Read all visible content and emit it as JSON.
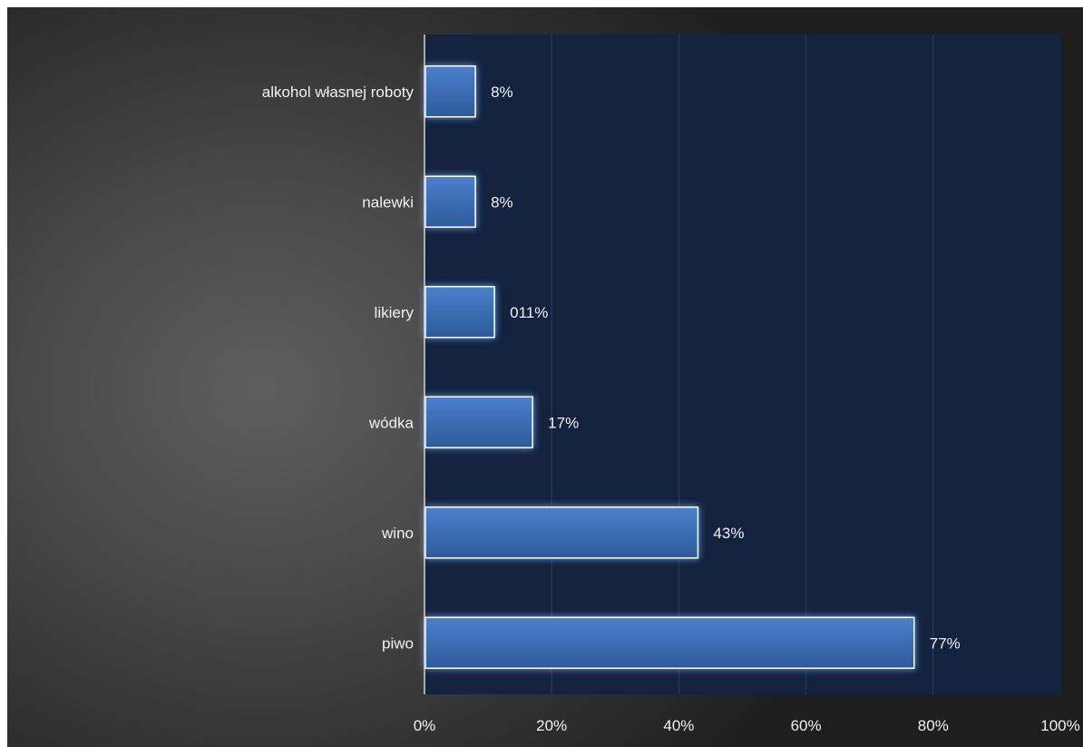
{
  "chart_data": {
    "type": "bar",
    "orientation": "horizontal",
    "title": "",
    "xlabel": "",
    "ylabel": "",
    "categories": [
      "alkohol własnej roboty",
      "nalewki",
      "likiery",
      "wódka",
      "wino",
      "piwo"
    ],
    "values": [
      8,
      8,
      11,
      17,
      43,
      77
    ],
    "data_labels": [
      "8%",
      "8%",
      "011%",
      "17%",
      "43%",
      "77%"
    ],
    "xlim": [
      0,
      100
    ],
    "x_ticks": [
      "0%",
      "20%",
      "40%",
      "60%",
      "80%",
      "100%"
    ],
    "grid": "vertical",
    "legend": "none",
    "colors": {
      "plot_background": "#13223f",
      "bar_fill_top": "#4a80cc",
      "bar_fill_bottom": "#2d5a9a",
      "bar_border": "#ffffff",
      "bar_glow": "#7fb2ff",
      "text": "#f2f2f2",
      "gridline": "#2f3e5c",
      "axis_line": "#cfd6e0"
    }
  }
}
